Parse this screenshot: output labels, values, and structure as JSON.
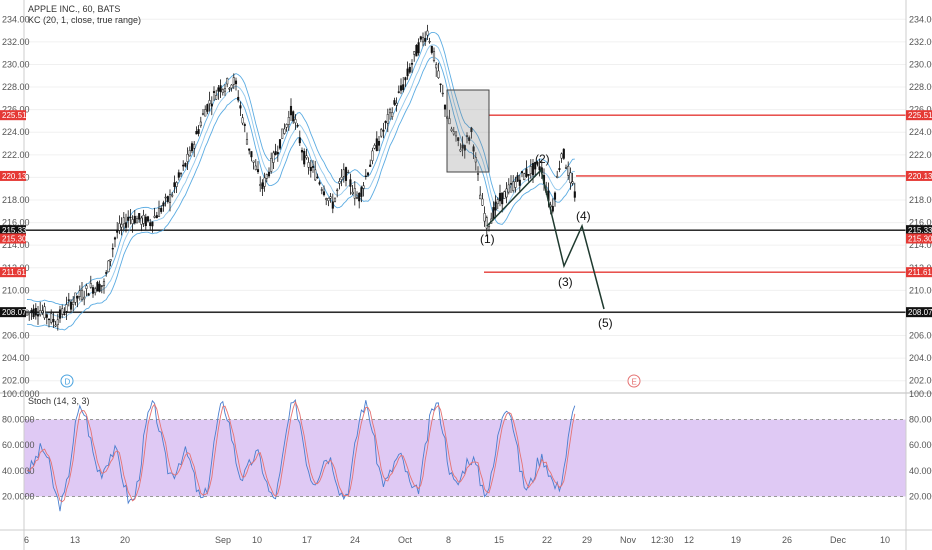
{
  "chart_data": {
    "type": "candlestick",
    "symbol_title": "APPLE INC., 60, BATS",
    "indicator_label": "KC (20, 1, close, true range)",
    "stoch_label": "Stoch (14, 3, 3)",
    "price_axis": {
      "ticks": [
        "234.00",
        "232.00",
        "230.00",
        "228.00",
        "226.00",
        "224.00",
        "222.00",
        "220.00",
        "218.00",
        "216.00",
        "214.00",
        "212.00",
        "210.00",
        "208.00",
        "206.00",
        "204.00",
        "202.00"
      ],
      "ylim": [
        201,
        235
      ]
    },
    "stoch_axis": {
      "ticks": [
        "100.0000",
        "80.0000",
        "60.0000",
        "40.0000",
        "20.0000"
      ],
      "ylim": [
        0,
        100
      ]
    },
    "x_ticks": [
      "6",
      "13",
      "20",
      "Sep",
      "10",
      "17",
      "24",
      "Oct",
      "8",
      "15",
      "22",
      "29",
      "Nov",
      "12:30",
      "12",
      "19",
      "26",
      "Dec",
      "10"
    ],
    "price_levels": [
      {
        "label": "225.51",
        "value": 225.51,
        "color": "#e53935"
      },
      {
        "label": "220.13",
        "value": 220.13,
        "color": "#e53935"
      },
      {
        "label": "215.33",
        "value": 215.33,
        "color": "#111111"
      },
      {
        "label": "215.30",
        "value": 215.3,
        "color": "#e53935"
      },
      {
        "label": "211.61",
        "value": 211.61,
        "color": "#e53935"
      },
      {
        "label": "208.07",
        "value": 208.07,
        "color": "#111111"
      }
    ],
    "wave_labels": [
      "(1)",
      "(2)",
      "(3)",
      "(4)",
      "(5)"
    ],
    "event_markers": [
      {
        "text": "D",
        "color": "#4aa3df"
      },
      {
        "text": "E",
        "color": "#e57373"
      }
    ],
    "colors": {
      "candle": "#111111",
      "keltner": "#4aa3df",
      "stoch_k": "#4a7ecf",
      "stoch_d": "#e57373",
      "stoch_band": "#d9bff2"
    }
  }
}
